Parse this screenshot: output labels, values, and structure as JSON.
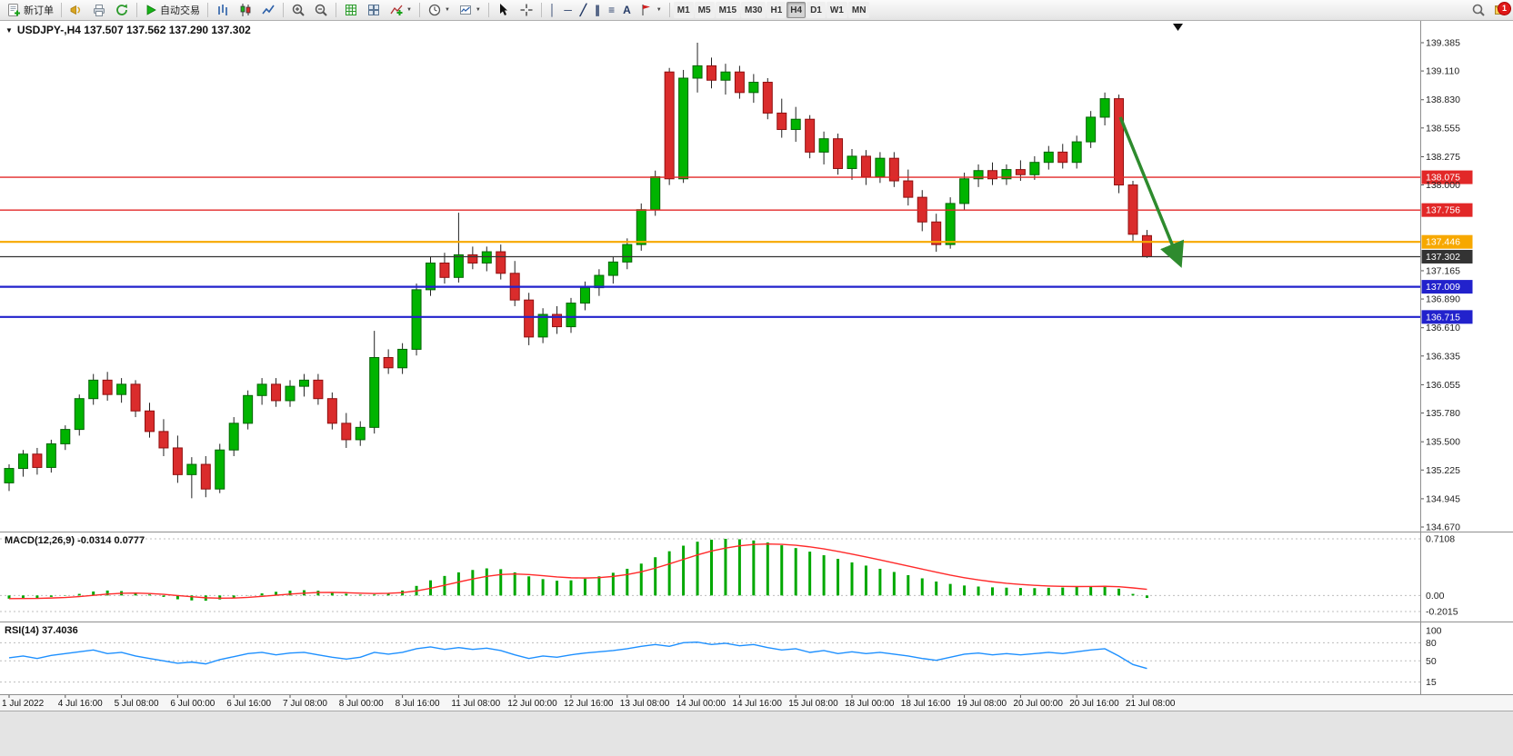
{
  "toolbar": {
    "new_order_label": "新订单",
    "auto_trading_label": "自动交易",
    "timeframes": [
      "M1",
      "M5",
      "M15",
      "M30",
      "H1",
      "H4",
      "D1",
      "W1",
      "MN"
    ],
    "active_timeframe": "H4",
    "notification_count": "1"
  },
  "icons": {
    "dropdown_caret": "▼",
    "collapse_triangle": "▼",
    "vline": "│",
    "hline": "─",
    "trendline": "╱",
    "channel": "∥",
    "fibonacci": "≡",
    "text_tool": "A"
  },
  "chart": {
    "title": "USDJPY-,H4 137.507 137.562 137.290 137.302",
    "symbol": "USDJPY-",
    "period": "H4"
  },
  "chart_data": {
    "type": "candlestick",
    "symbol": "USDJPY-",
    "timeframe": "H4",
    "colors": {
      "bull": "#00b400",
      "bull_border": "#046404",
      "bear": "#da2c2c",
      "bear_border": "#8f1010",
      "wick": "#222222"
    },
    "price_axis": {
      "max": 139.385,
      "min": 134.67,
      "ticks": [
        "139.385",
        "139.110",
        "138.830",
        "138.555",
        "138.275",
        "138.000",
        "137.165",
        "136.890",
        "136.610",
        "136.335",
        "136.055",
        "135.780",
        "135.500",
        "135.225",
        "134.945",
        "134.670"
      ]
    },
    "hlines": [
      {
        "price": 138.075,
        "color": "#e22828",
        "width": 1.4,
        "label": "138.075"
      },
      {
        "price": 137.756,
        "color": "#e22828",
        "width": 1.4,
        "label": "137.756"
      },
      {
        "price": 137.446,
        "color": "#f7a800",
        "width": 2.2,
        "label": "137.446"
      },
      {
        "price": 137.302,
        "color": "#333333",
        "width": 1.2,
        "label": "137.302"
      },
      {
        "price": 137.009,
        "color": "#2222cc",
        "width": 2.2,
        "label": "137.009"
      },
      {
        "price": 136.715,
        "color": "#2222cc",
        "width": 2.2,
        "label": "136.715"
      }
    ],
    "arrow": {
      "from_index": 79.1,
      "from_price": 138.66,
      "to_index": 83.3,
      "to_price": 137.25,
      "color": "#2e8b2e"
    },
    "time_labels": [
      "1 Jul 2022",
      "4 Jul 16:00",
      "5 Jul 08:00",
      "6 Jul 00:00",
      "6 Jul 16:00",
      "7 Jul 08:00",
      "8 Jul 00:00",
      "8 Jul 16:00",
      "11 Jul 08:00",
      "12 Jul 00:00",
      "12 Jul 16:00",
      "13 Jul 08:00",
      "14 Jul 00:00",
      "14 Jul 16:00",
      "15 Jul 08:00",
      "18 Jul 00:00",
      "18 Jul 16:00",
      "19 Jul 08:00",
      "20 Jul 00:00",
      "20 Jul 16:00",
      "21 Jul 08:00"
    ],
    "label_every": 4,
    "ohlc": [
      [
        135.1,
        135.28,
        135.02,
        135.24
      ],
      [
        135.24,
        135.42,
        135.16,
        135.38
      ],
      [
        135.38,
        135.44,
        135.18,
        135.25
      ],
      [
        135.25,
        135.52,
        135.2,
        135.48
      ],
      [
        135.48,
        135.66,
        135.42,
        135.62
      ],
      [
        135.62,
        135.96,
        135.56,
        135.92
      ],
      [
        135.92,
        136.16,
        135.86,
        136.1
      ],
      [
        136.1,
        136.18,
        135.9,
        135.96
      ],
      [
        135.96,
        136.12,
        135.88,
        136.06
      ],
      [
        136.06,
        136.1,
        135.74,
        135.8
      ],
      [
        135.8,
        135.88,
        135.54,
        135.6
      ],
      [
        135.6,
        135.72,
        135.36,
        135.44
      ],
      [
        135.44,
        135.56,
        135.1,
        135.18
      ],
      [
        135.18,
        135.35,
        134.95,
        135.28
      ],
      [
        135.28,
        135.36,
        134.96,
        135.04
      ],
      [
        135.04,
        135.48,
        135.0,
        135.42
      ],
      [
        135.42,
        135.74,
        135.36,
        135.68
      ],
      [
        135.68,
        136.0,
        135.62,
        135.95
      ],
      [
        135.95,
        136.12,
        135.86,
        136.06
      ],
      [
        136.06,
        136.12,
        135.84,
        135.9
      ],
      [
        135.9,
        136.1,
        135.84,
        136.04
      ],
      [
        136.04,
        136.16,
        135.94,
        136.1
      ],
      [
        136.1,
        136.16,
        135.86,
        135.92
      ],
      [
        135.92,
        135.98,
        135.62,
        135.68
      ],
      [
        135.68,
        135.78,
        135.44,
        135.52
      ],
      [
        135.52,
        135.7,
        135.46,
        135.64
      ],
      [
        135.64,
        136.58,
        135.58,
        136.32
      ],
      [
        136.32,
        136.4,
        136.16,
        136.22
      ],
      [
        136.22,
        136.46,
        136.16,
        136.4
      ],
      [
        136.4,
        137.04,
        136.34,
        136.98
      ],
      [
        136.98,
        137.3,
        136.92,
        137.24
      ],
      [
        137.24,
        137.34,
        137.04,
        137.1
      ],
      [
        137.1,
        137.73,
        137.05,
        137.32
      ],
      [
        137.32,
        137.4,
        137.18,
        137.24
      ],
      [
        137.24,
        137.4,
        137.16,
        137.35
      ],
      [
        137.35,
        137.42,
        137.08,
        137.14
      ],
      [
        137.14,
        137.26,
        136.82,
        136.88
      ],
      [
        136.88,
        136.95,
        136.44,
        136.52
      ],
      [
        136.52,
        136.8,
        136.46,
        136.74
      ],
      [
        136.74,
        136.82,
        136.55,
        136.62
      ],
      [
        136.62,
        136.9,
        136.56,
        136.85
      ],
      [
        136.85,
        137.06,
        136.78,
        137.0
      ],
      [
        137.0,
        137.18,
        136.92,
        137.12
      ],
      [
        137.12,
        137.3,
        137.04,
        137.25
      ],
      [
        137.25,
        137.48,
        137.18,
        137.42
      ],
      [
        137.42,
        137.82,
        137.36,
        137.76
      ],
      [
        137.76,
        138.14,
        137.7,
        138.08
      ],
      [
        139.1,
        139.14,
        138.0,
        138.06
      ],
      [
        138.06,
        139.12,
        138.02,
        139.04
      ],
      [
        139.04,
        139.385,
        138.9,
        139.16
      ],
      [
        139.16,
        139.24,
        138.94,
        139.02
      ],
      [
        139.02,
        139.18,
        138.88,
        139.1
      ],
      [
        139.1,
        139.16,
        138.84,
        138.9
      ],
      [
        138.9,
        139.08,
        138.8,
        139.0
      ],
      [
        139.0,
        139.04,
        138.64,
        138.7
      ],
      [
        138.7,
        138.84,
        138.46,
        138.54
      ],
      [
        138.54,
        138.76,
        138.42,
        138.64
      ],
      [
        138.64,
        138.68,
        138.26,
        138.32
      ],
      [
        138.32,
        138.52,
        138.2,
        138.45
      ],
      [
        138.45,
        138.5,
        138.1,
        138.16
      ],
      [
        138.16,
        138.35,
        138.05,
        138.28
      ],
      [
        138.28,
        138.34,
        138.0,
        138.08
      ],
      [
        138.08,
        138.32,
        138.02,
        138.26
      ],
      [
        138.26,
        138.32,
        137.98,
        138.04
      ],
      [
        138.04,
        138.15,
        137.8,
        137.88
      ],
      [
        137.88,
        137.95,
        137.55,
        137.64
      ],
      [
        137.64,
        137.72,
        137.35,
        137.42
      ],
      [
        137.42,
        137.88,
        137.38,
        137.82
      ],
      [
        137.82,
        138.12,
        137.76,
        138.06
      ],
      [
        138.06,
        138.2,
        137.98,
        138.14
      ],
      [
        138.14,
        138.22,
        138.0,
        138.06
      ],
      [
        138.06,
        138.2,
        138.0,
        138.15
      ],
      [
        138.15,
        138.24,
        138.04,
        138.1
      ],
      [
        138.1,
        138.28,
        138.05,
        138.22
      ],
      [
        138.22,
        138.38,
        138.15,
        138.32
      ],
      [
        138.32,
        138.4,
        138.16,
        138.22
      ],
      [
        138.22,
        138.48,
        138.16,
        138.42
      ],
      [
        138.42,
        138.72,
        138.36,
        138.66
      ],
      [
        138.66,
        138.9,
        138.58,
        138.84
      ],
      [
        138.84,
        138.88,
        137.92,
        138.0
      ],
      [
        138.0,
        138.04,
        137.44,
        137.52
      ],
      [
        137.507,
        137.562,
        137.29,
        137.302
      ]
    ],
    "macd": {
      "label": "MACD(12,26,9) -0.0314 0.0777",
      "max": 0.7108,
      "min": -0.2015,
      "hist_color": "#00a800",
      "signal_color": "#ff2a2a",
      "scale_ticks": [
        {
          "value": 0.7108,
          "label": "0.7108"
        },
        {
          "value": 0,
          "label": "0.00"
        },
        {
          "value": -0.2015,
          "label": "-0.2015"
        }
      ],
      "hist": [
        -0.04,
        -0.03,
        -0.034,
        -0.018,
        -0.004,
        0.02,
        0.05,
        0.062,
        0.055,
        0.038,
        0.012,
        -0.018,
        -0.048,
        -0.062,
        -0.066,
        -0.05,
        -0.028,
        0.002,
        0.026,
        0.046,
        0.06,
        0.066,
        0.06,
        0.044,
        0.022,
        0.01,
        0.012,
        0.032,
        0.062,
        0.12,
        0.19,
        0.245,
        0.29,
        0.32,
        0.34,
        0.33,
        0.29,
        0.24,
        0.205,
        0.185,
        0.19,
        0.21,
        0.24,
        0.285,
        0.335,
        0.4,
        0.48,
        0.555,
        0.625,
        0.675,
        0.7,
        0.7108,
        0.705,
        0.69,
        0.665,
        0.63,
        0.595,
        0.55,
        0.505,
        0.46,
        0.415,
        0.375,
        0.335,
        0.295,
        0.255,
        0.215,
        0.175,
        0.145,
        0.125,
        0.112,
        0.102,
        0.098,
        0.094,
        0.092,
        0.096,
        0.1,
        0.106,
        0.115,
        0.12,
        0.085,
        0.02,
        -0.0314
      ],
      "signal": [
        -0.04,
        -0.038,
        -0.037,
        -0.032,
        -0.025,
        -0.014,
        0.002,
        0.017,
        0.027,
        0.03,
        0.025,
        0.014,
        -0.001,
        -0.016,
        -0.029,
        -0.034,
        -0.033,
        -0.024,
        -0.011,
        0.003,
        0.017,
        0.029,
        0.037,
        0.039,
        0.035,
        0.029,
        0.025,
        0.027,
        0.036,
        0.057,
        0.09,
        0.129,
        0.169,
        0.207,
        0.24,
        0.263,
        0.27,
        0.262,
        0.248,
        0.232,
        0.222,
        0.219,
        0.224,
        0.239,
        0.263,
        0.297,
        0.343,
        0.396,
        0.453,
        0.509,
        0.557,
        0.595,
        0.623,
        0.64,
        0.646,
        0.642,
        0.63,
        0.61,
        0.584,
        0.553,
        0.519,
        0.483,
        0.446,
        0.408,
        0.37,
        0.331,
        0.292,
        0.255,
        0.223,
        0.195,
        0.172,
        0.153,
        0.138,
        0.127,
        0.119,
        0.114,
        0.112,
        0.113,
        0.115,
        0.11,
        0.095,
        0.0777
      ]
    },
    "rsi": {
      "label": "RSI(14) 37.4036",
      "color": "#1e90ff",
      "scale_ticks": [
        {
          "value": 100,
          "label": "100",
          "dashed": false
        },
        {
          "value": 80,
          "label": "80",
          "dashed": true
        },
        {
          "value": 50,
          "label": "50",
          "dashed": true
        },
        {
          "value": 15,
          "label": "15",
          "dashed": true
        }
      ],
      "values": [
        55,
        58,
        54,
        59,
        62,
        65,
        68,
        62,
        64,
        58,
        54,
        50,
        46,
        48,
        45,
        52,
        57,
        62,
        64,
        60,
        63,
        64,
        60,
        56,
        53,
        56,
        64,
        61,
        64,
        70,
        73,
        69,
        72,
        69,
        71,
        67,
        60,
        54,
        58,
        56,
        60,
        63,
        65,
        67,
        70,
        74,
        77,
        74,
        80,
        81,
        77,
        79,
        75,
        77,
        72,
        68,
        70,
        64,
        67,
        62,
        65,
        62,
        64,
        61,
        58,
        54,
        51,
        56,
        61,
        63,
        60,
        62,
        60,
        62,
        64,
        62,
        65,
        68,
        70,
        58,
        44,
        37.4
      ]
    }
  }
}
